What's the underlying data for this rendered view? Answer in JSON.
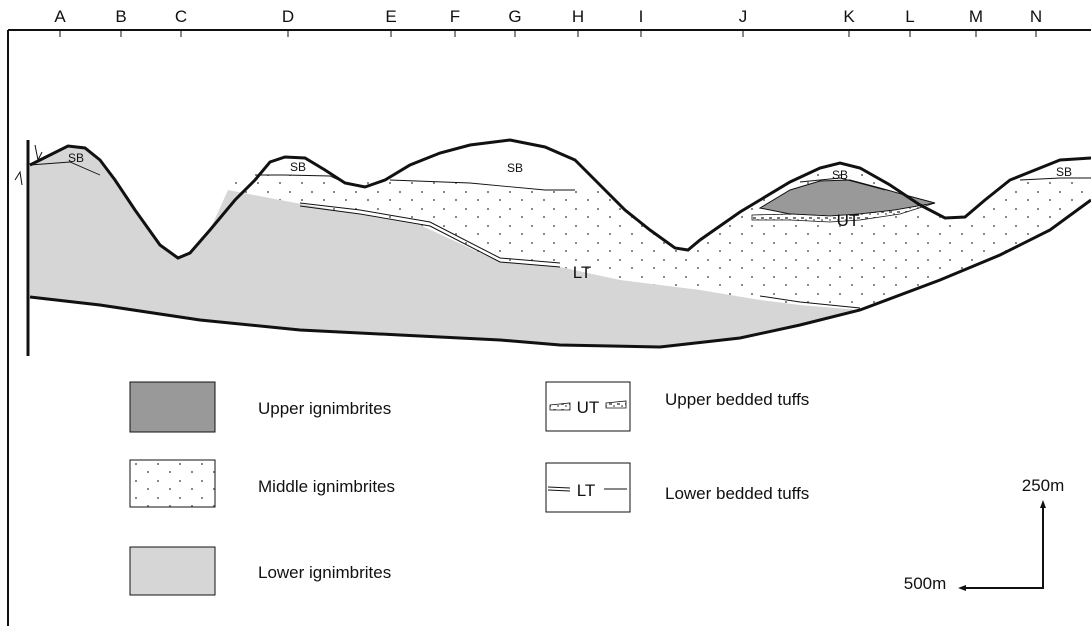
{
  "columns": [
    "A",
    "B",
    "C",
    "D",
    "E",
    "F",
    "G",
    "H",
    "I",
    "J",
    "K",
    "L",
    "M",
    "N"
  ],
  "section": {
    "sb": [
      "SB",
      "SB",
      "SB",
      "SB",
      "SB"
    ],
    "ut": "UT",
    "lt": "LT"
  },
  "legend": [
    {
      "label": "Upper ignimbrites"
    },
    {
      "label": "Middle ignimbrites"
    },
    {
      "label": "Lower ignimbrites"
    },
    {
      "label": "Upper bedded tuffs",
      "symbol": "UT"
    },
    {
      "label": "Lower bedded tuffs",
      "symbol": "LT"
    }
  ],
  "scale": {
    "vertical": "250m",
    "horizontal": "500m"
  }
}
